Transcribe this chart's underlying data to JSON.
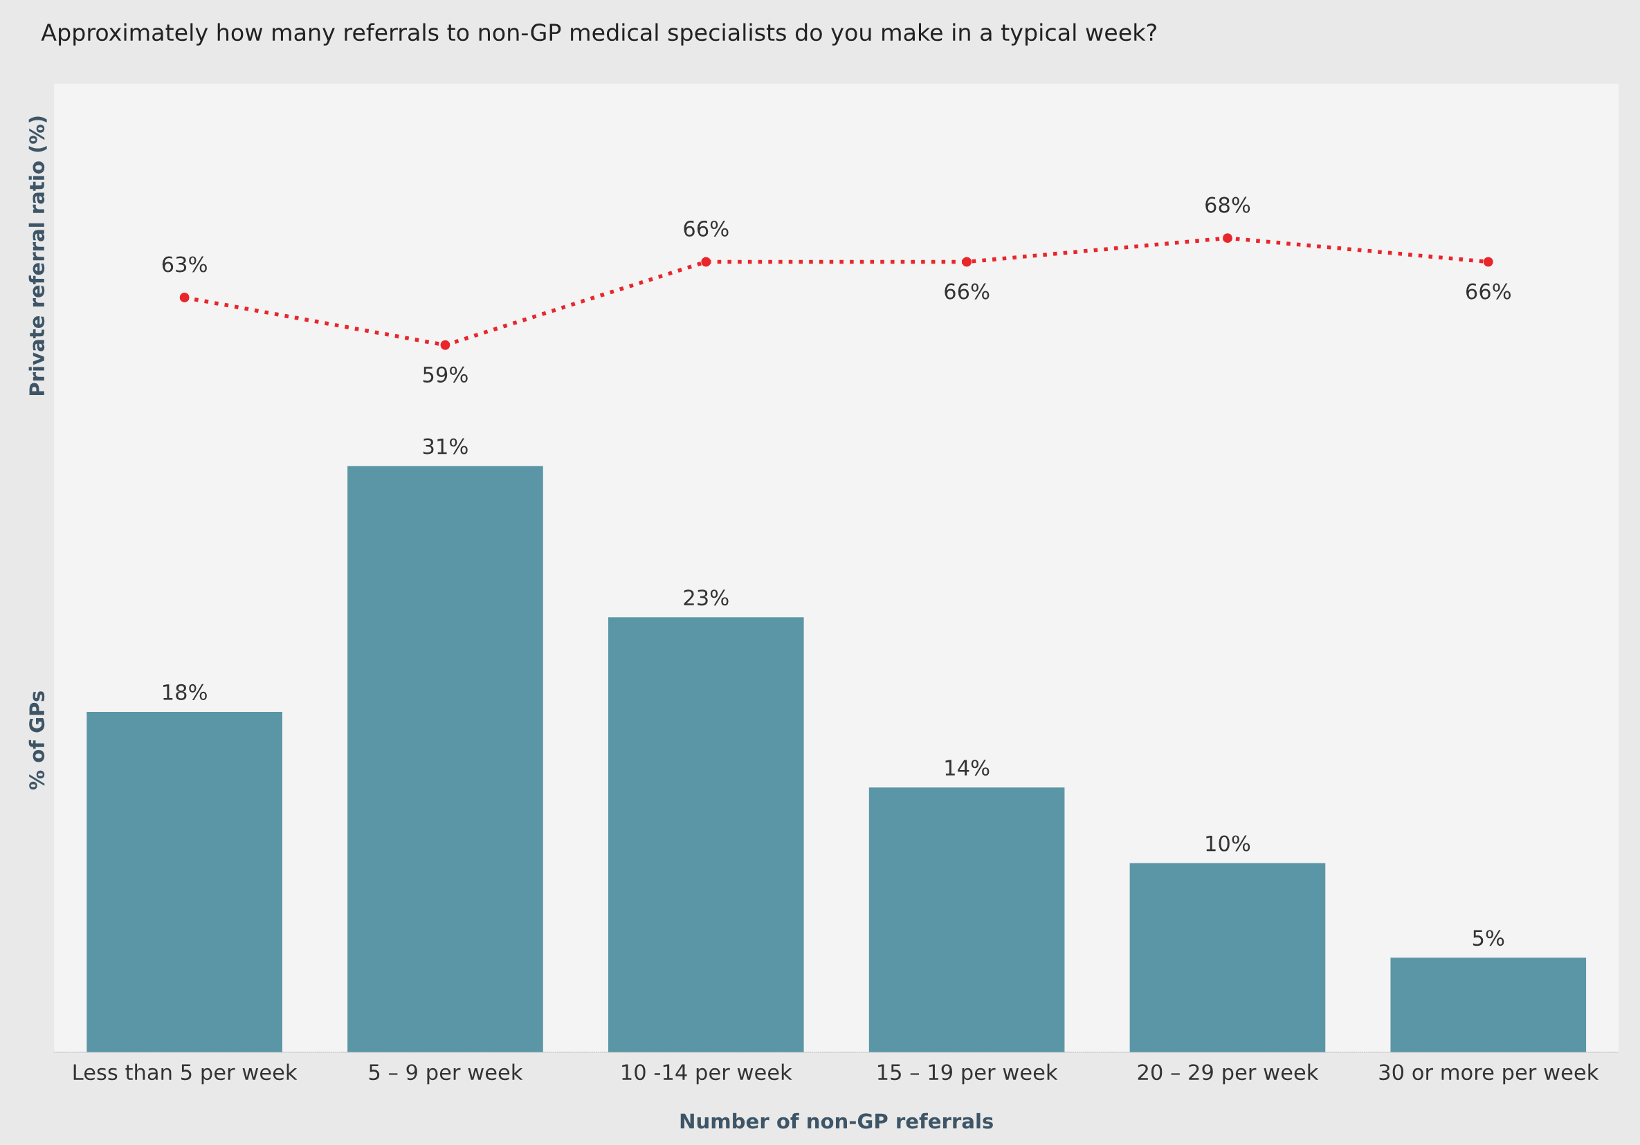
{
  "chart_data": [
    {
      "type": "line",
      "title": "Approximately how many referrals to non-GP medical specialists do you make in a typical week?",
      "ylabel": "Private referral ratio (%)",
      "categories": [
        null,
        null,
        null,
        null,
        null,
        null
      ],
      "series": [
        {
          "color": "#e8262b",
          "values": [
            63,
            59,
            66,
            66,
            68,
            66
          ],
          "value_labels": [
            "63%",
            "59%",
            "66%",
            "66%",
            "68%",
            "66%"
          ]
        }
      ],
      "marker": "circle",
      "line_style": "dotted",
      "ylim": [
        52,
        81
      ],
      "tick_labels": false
    },
    {
      "type": "bar",
      "ylabel": "% of GPs",
      "xlabel": "Number of non-GP referrals",
      "categories": [
        "Less than 5 per week",
        "5 – 9 per week",
        "10 -14 per week",
        "15 – 19 per week",
        "20 – 29 per week",
        "30 or more per week"
      ],
      "series": [
        {
          "color": "#5b96a6",
          "values": [
            18,
            31,
            23,
            14,
            10,
            5
          ],
          "value_labels": [
            "18%",
            "31%",
            "23%",
            "14%",
            "10%",
            "5%"
          ]
        }
      ],
      "ylim": [
        0,
        33
      ],
      "tick_labels": "x"
    }
  ]
}
